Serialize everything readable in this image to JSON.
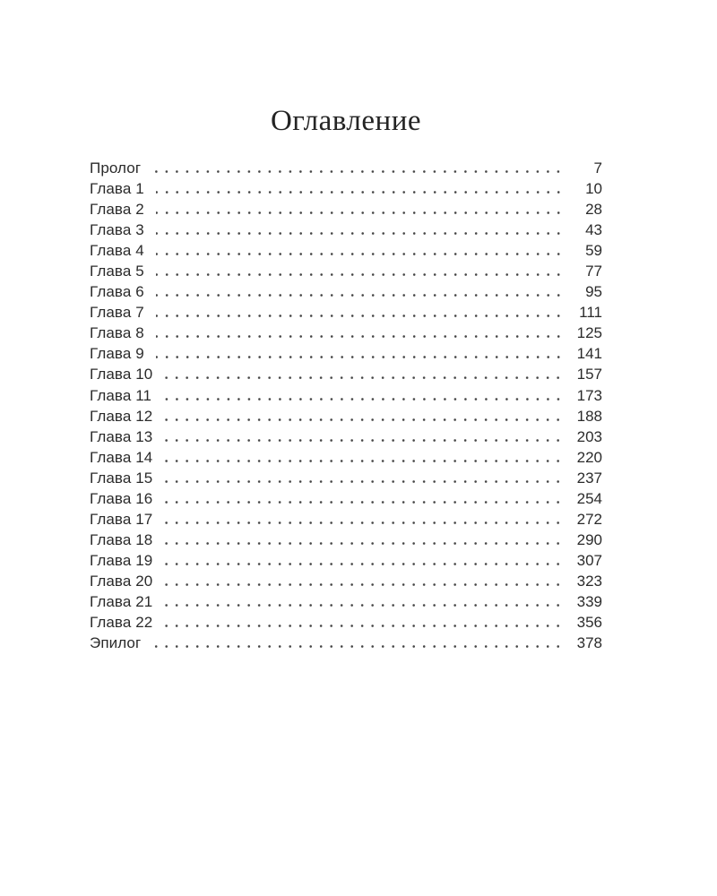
{
  "page": {
    "title": "Оглавление"
  },
  "toc": {
    "entries": [
      {
        "label": "Пролог",
        "page": "7"
      },
      {
        "label": "Глава 1",
        "page": "10"
      },
      {
        "label": "Глава 2",
        "page": "28"
      },
      {
        "label": "Глава 3",
        "page": "43"
      },
      {
        "label": "Глава 4",
        "page": "59"
      },
      {
        "label": "Глава 5",
        "page": "77"
      },
      {
        "label": "Глава 6",
        "page": "95"
      },
      {
        "label": "Глава 7",
        "page": "111"
      },
      {
        "label": "Глава 8",
        "page": "125"
      },
      {
        "label": "Глава 9",
        "page": "141"
      },
      {
        "label": "Глава 10",
        "page": "157"
      },
      {
        "label": "Глава 11",
        "page": "173"
      },
      {
        "label": "Глава 12",
        "page": "188"
      },
      {
        "label": "Глава 13",
        "page": "203"
      },
      {
        "label": "Глава 14",
        "page": "220"
      },
      {
        "label": "Глава 15",
        "page": "237"
      },
      {
        "label": "Глава 16",
        "page": "254"
      },
      {
        "label": "Глава 17",
        "page": "272"
      },
      {
        "label": "Глава 18",
        "page": "290"
      },
      {
        "label": "Глава 19",
        "page": "307"
      },
      {
        "label": "Глава 20",
        "page": "323"
      },
      {
        "label": "Глава 21",
        "page": "339"
      },
      {
        "label": "Глава 22",
        "page": "356"
      },
      {
        "label": "Эпилог",
        "page": "378"
      }
    ]
  },
  "colors": {
    "background": "#ffffff",
    "text": "#2b2b2b",
    "title_text": "#242424",
    "leader_dots": "#454545"
  }
}
